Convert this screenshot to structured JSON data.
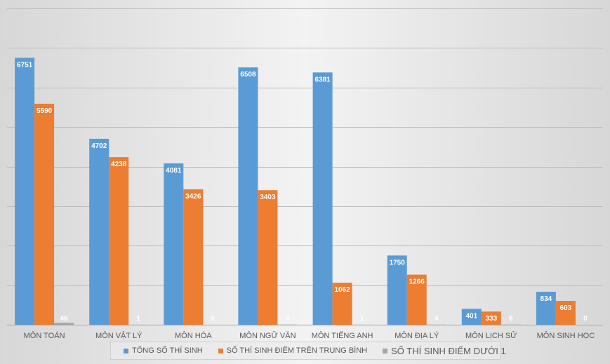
{
  "chart_data": {
    "type": "bar",
    "categories": [
      "MÔN TOÁN",
      "MÔN VẬT LÝ",
      "MÔN HÓA",
      "MÔN NGỮ VĂN",
      "MÔN TIẾNG ANH",
      "MÔN ĐỊA LÝ",
      "MÔN LỊCH SỬ",
      "MÔN SINH HỌC"
    ],
    "series": [
      {
        "name": "TỔNG SỐ THÍ SINH",
        "color": "#5b9bd5",
        "values": [
          6751,
          4702,
          4081,
          6508,
          6381,
          1750,
          401,
          834
        ]
      },
      {
        "name": "SỐ THÍ SINH ĐIỂM TRÊN TRUNG BÌNH",
        "color": "#ed7d31",
        "values": [
          5590,
          4238,
          3426,
          3403,
          1062,
          1266,
          333,
          603
        ]
      },
      {
        "name": "SỐ THÍ SINH ĐIỂM DƯỚI 1",
        "color": "#a5a5a5",
        "values": [
          46,
          1,
          0,
          6,
          1,
          4,
          6,
          0
        ]
      }
    ],
    "ylim": [
      0,
      8000
    ],
    "grid": true,
    "legend_position": "bottom",
    "data_labels": true
  }
}
